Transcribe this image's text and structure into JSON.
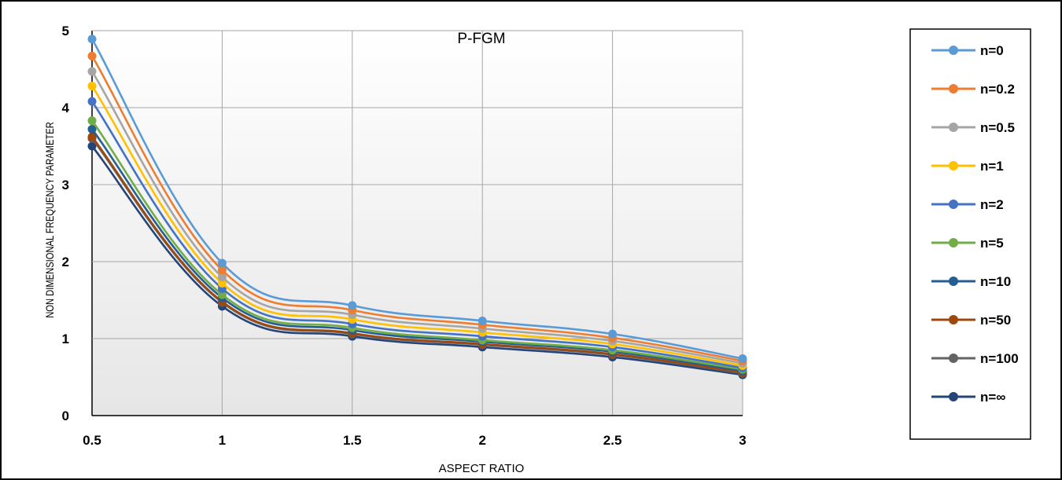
{
  "chart_data": {
    "type": "line",
    "title": "P-FGM",
    "xlabel": "ASPECT RATIO",
    "ylabel": "NON DIMENSIONAL FREQUENCY PARAMETER",
    "x": [
      0.5,
      1,
      1.5,
      2,
      2.5,
      3
    ],
    "xlim": [
      0.5,
      3
    ],
    "ylim": [
      0,
      5
    ],
    "xticks": [
      "0.5",
      "1",
      "1.5",
      "2",
      "2.5",
      "3"
    ],
    "yticks": [
      "0",
      "1",
      "2",
      "3",
      "4",
      "5"
    ],
    "grid": true,
    "legend_position": "right",
    "series": [
      {
        "name": "n=0",
        "color": "#5B9BD5",
        "values": [
          4.89,
          1.98,
          1.43,
          1.23,
          1.06,
          0.74
        ]
      },
      {
        "name": "n=0.2",
        "color": "#ED7D31",
        "values": [
          4.67,
          1.89,
          1.37,
          1.18,
          1.01,
          0.71
        ]
      },
      {
        "name": "n=0.5",
        "color": "#A5A5A5",
        "values": [
          4.47,
          1.8,
          1.31,
          1.13,
          0.97,
          0.68
        ]
      },
      {
        "name": "n=1",
        "color": "#FFC000",
        "values": [
          4.28,
          1.72,
          1.25,
          1.08,
          0.93,
          0.65
        ]
      },
      {
        "name": "n=2",
        "color": "#4472C4",
        "values": [
          4.08,
          1.65,
          1.19,
          1.03,
          0.89,
          0.62
        ]
      },
      {
        "name": "n=5",
        "color": "#70AD47",
        "values": [
          3.83,
          1.57,
          1.14,
          0.98,
          0.85,
          0.6
        ]
      },
      {
        "name": "n=10",
        "color": "#255E91",
        "values": [
          3.72,
          1.53,
          1.11,
          0.96,
          0.83,
          0.58
        ]
      },
      {
        "name": "n=50",
        "color": "#9E480E",
        "values": [
          3.62,
          1.48,
          1.07,
          0.93,
          0.8,
          0.56
        ]
      },
      {
        "name": "n=100",
        "color": "#636363",
        "values": [
          3.6,
          1.47,
          1.06,
          0.92,
          0.79,
          0.55
        ]
      },
      {
        "name": "n=∞",
        "color": "#264478",
        "values": [
          3.5,
          1.42,
          1.03,
          0.89,
          0.76,
          0.53
        ]
      }
    ]
  }
}
